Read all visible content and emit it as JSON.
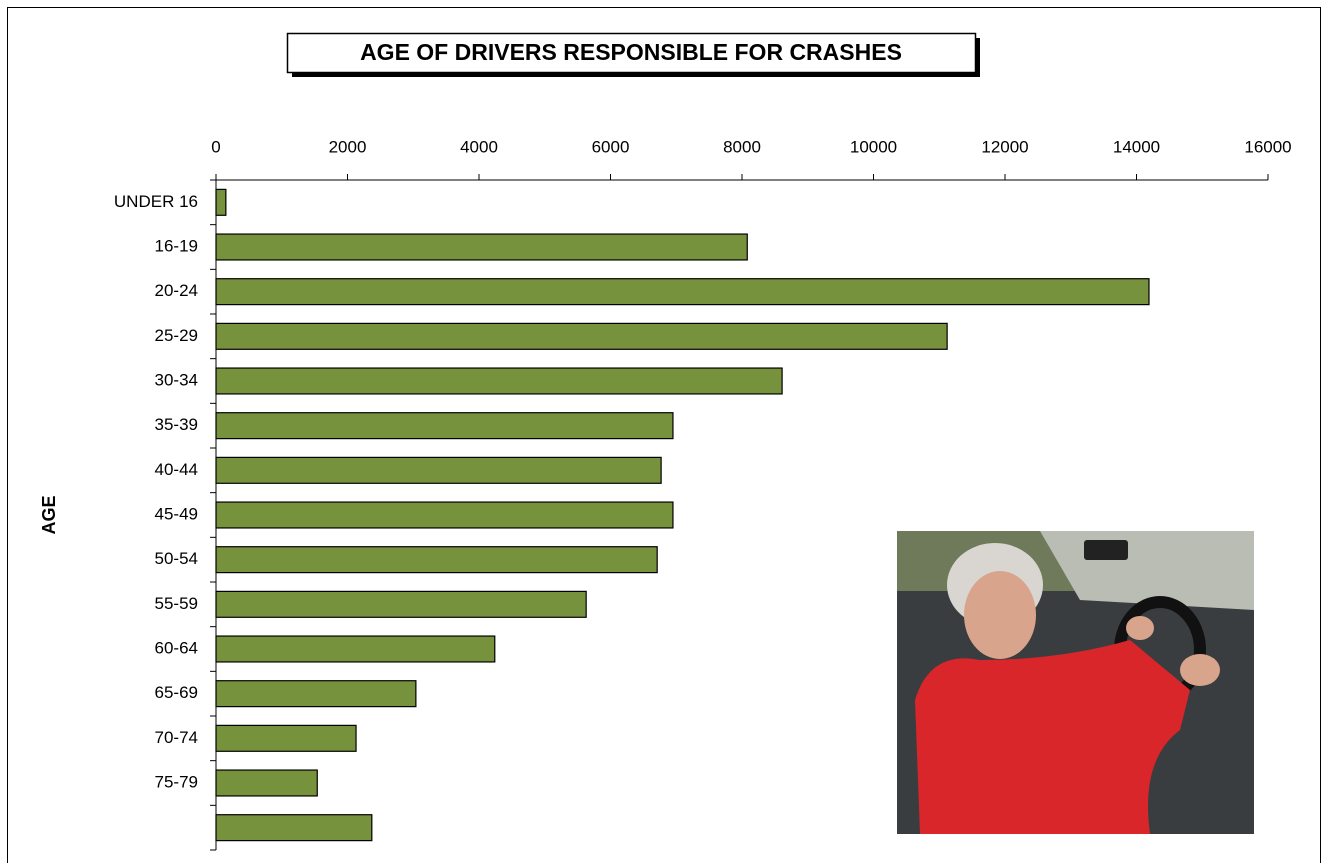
{
  "chart_data": {
    "type": "bar",
    "orientation": "horizontal",
    "title": "AGE OF DRIVERS RESPONSIBLE FOR CRASHES",
    "y_label": "AGE",
    "categories": [
      "UNDER 16",
      "16-19",
      "20-24",
      "25-29",
      "30-34",
      "35-39",
      "40-44",
      "45-49",
      "50-54",
      "55-59",
      "60-64",
      "65-69",
      "70-74",
      "75-79",
      null
    ],
    "values": [
      150,
      8080,
      14190,
      11120,
      8610,
      6950,
      6770,
      6950,
      6710,
      5630,
      4240,
      3040,
      2130,
      1540,
      2370
    ],
    "color": "#76923c",
    "xlim": [
      0,
      16000
    ],
    "xticks": [
      0,
      2000,
      4000,
      6000,
      8000,
      10000,
      12000,
      14000,
      16000
    ],
    "grid": false
  }
}
